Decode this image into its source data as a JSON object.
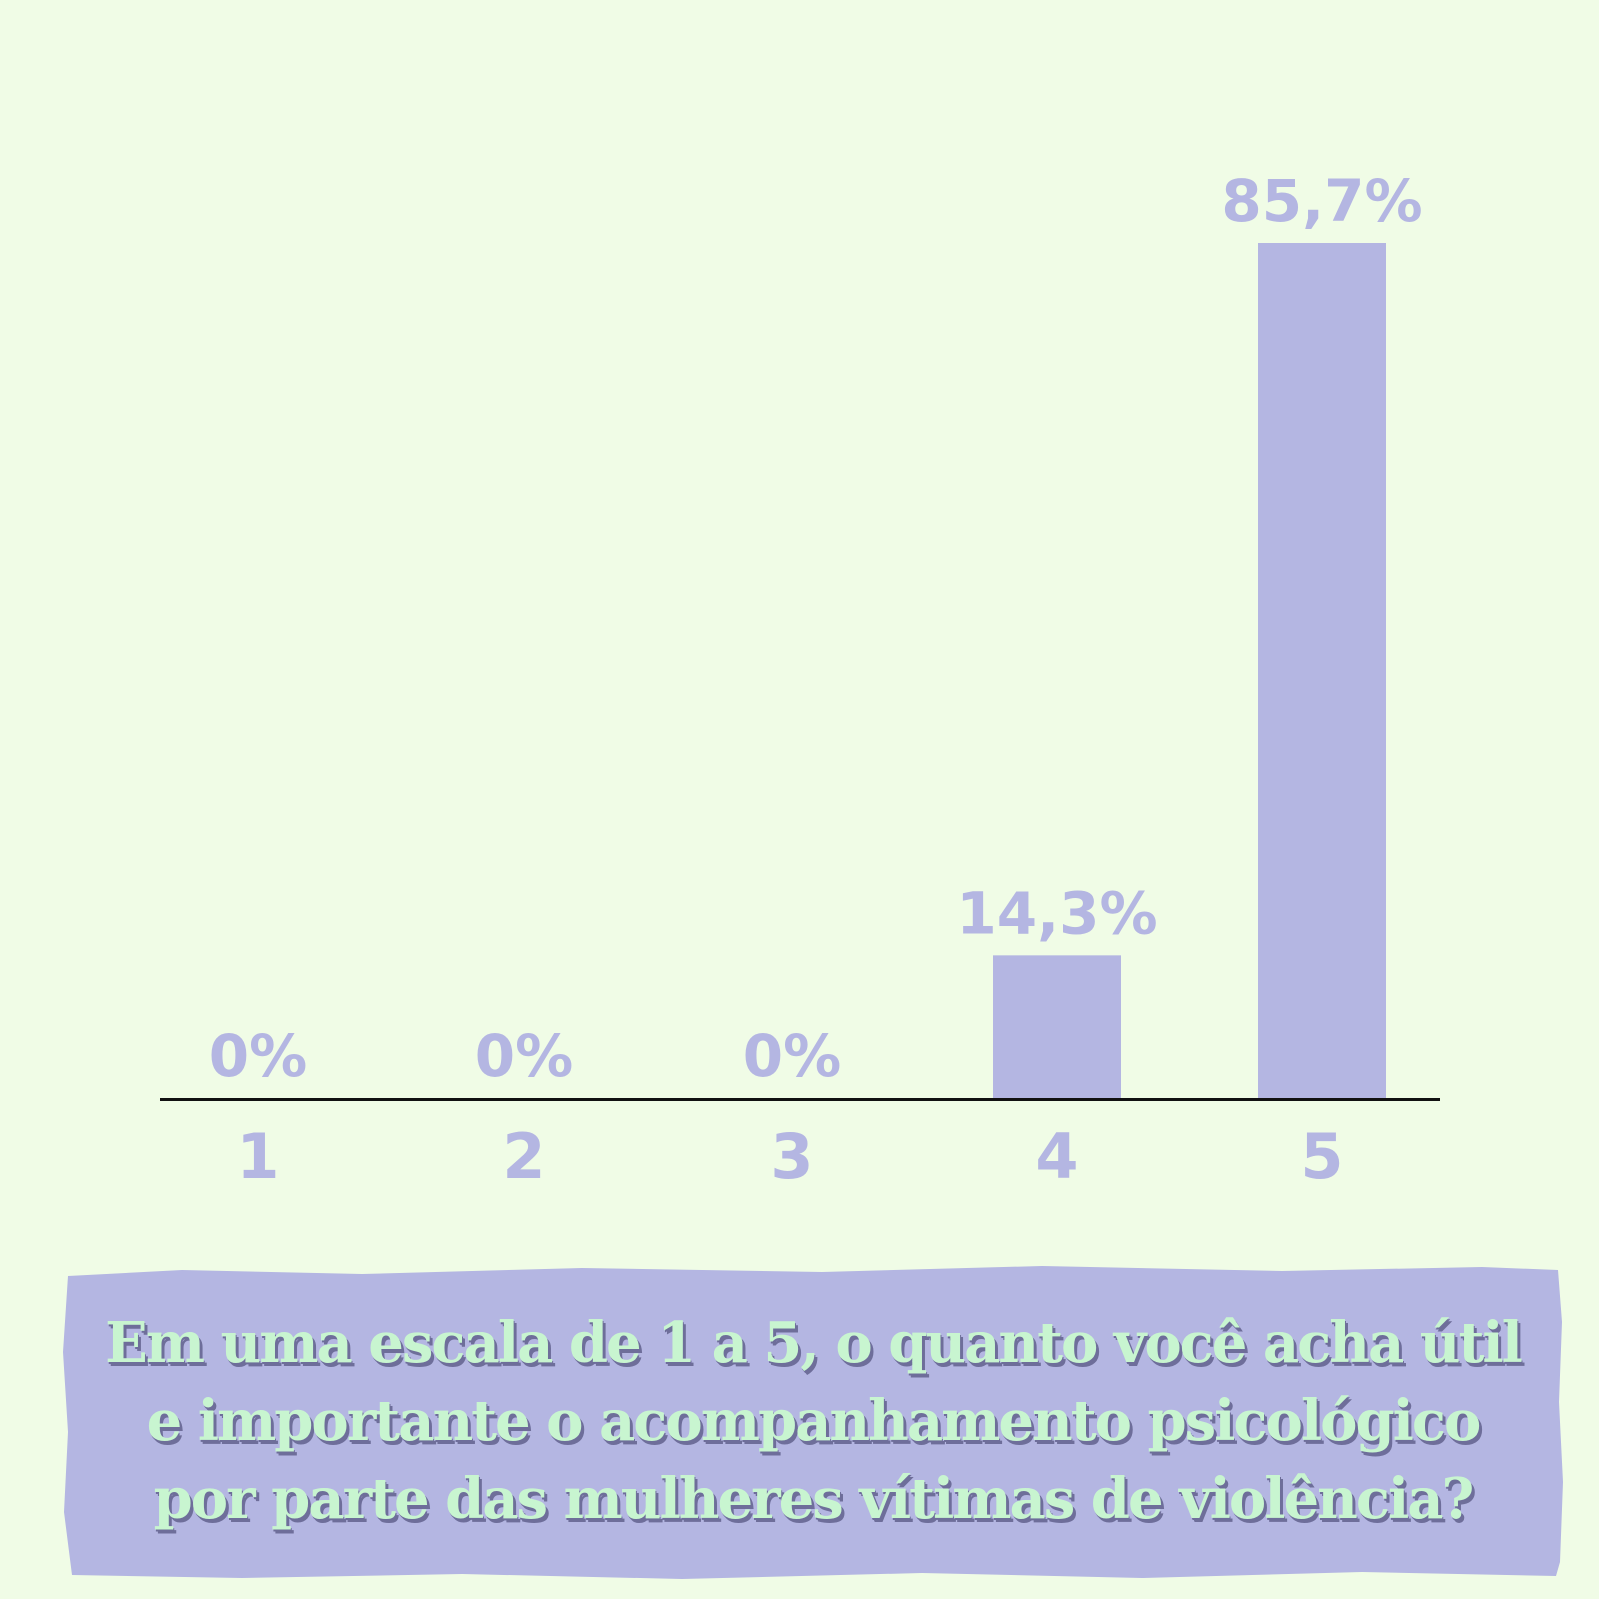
{
  "colors": {
    "background": "#f0fce6",
    "bar": "#b4b6e2",
    "label": "#b4b6e2",
    "axis": "#111111",
    "caption_box": "#b4b6e2",
    "caption_text": "#c8f5d0",
    "caption_shadow": "#6e6e9a"
  },
  "chart_data": {
    "type": "bar",
    "categories": [
      "1",
      "2",
      "3",
      "4",
      "5"
    ],
    "values": [
      0,
      0,
      0,
      14.3,
      85.7
    ],
    "value_labels": [
      "0%",
      "0%",
      "0%",
      "14,3%",
      "85,7%"
    ],
    "ylim": [
      0,
      85.7
    ],
    "grid": false,
    "legend": "none",
    "xlabel": "",
    "ylabel": ""
  },
  "caption": {
    "text": "Em uma escala de 1 a 5, o quanto você acha útil e importante o acompanhamento psicológico por parte das mulheres vítimas de violência?"
  }
}
